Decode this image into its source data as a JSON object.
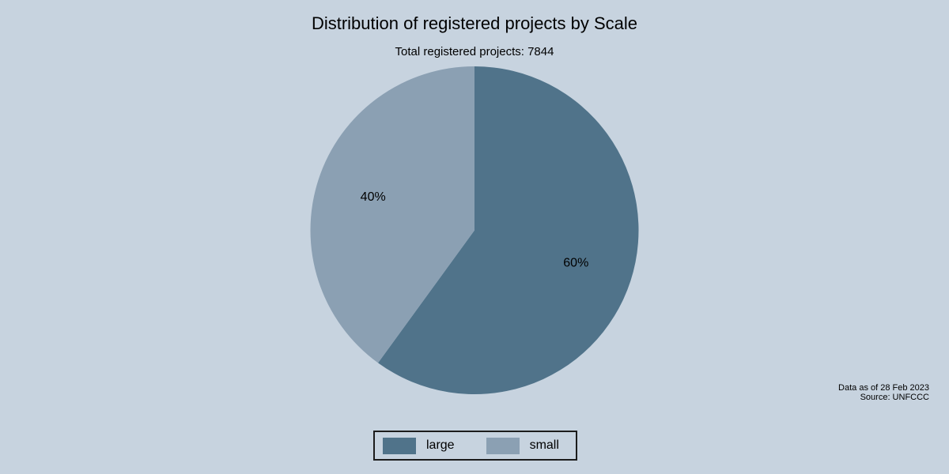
{
  "title": "Distribution of registered projects by Scale",
  "subtitle": "Total registered projects: 7844",
  "note": {
    "line1": "Data as of 28 Feb 2023",
    "line2": "Source: UNFCCC"
  },
  "colors": {
    "background": "#c7d3df",
    "text": "#000000",
    "legend_border": "#1c1c1c",
    "large_slice": "#50738a",
    "small_slice": "#8ba0b3"
  },
  "chart_data": {
    "type": "pie",
    "title": "Distribution of registered projects by Scale",
    "subtitle": "Total registered projects: 7844",
    "total_registered_projects": 7844,
    "slices": [
      {
        "label": "large",
        "percent": 60,
        "color": "#50738a"
      },
      {
        "label": "small",
        "percent": 40,
        "color": "#8ba0b3"
      }
    ],
    "start_angle": "12-o'clock",
    "direction": "clockwise",
    "label_format": "percent",
    "legend_position": "bottom-center",
    "legend_entries": [
      "large",
      "small"
    ]
  }
}
